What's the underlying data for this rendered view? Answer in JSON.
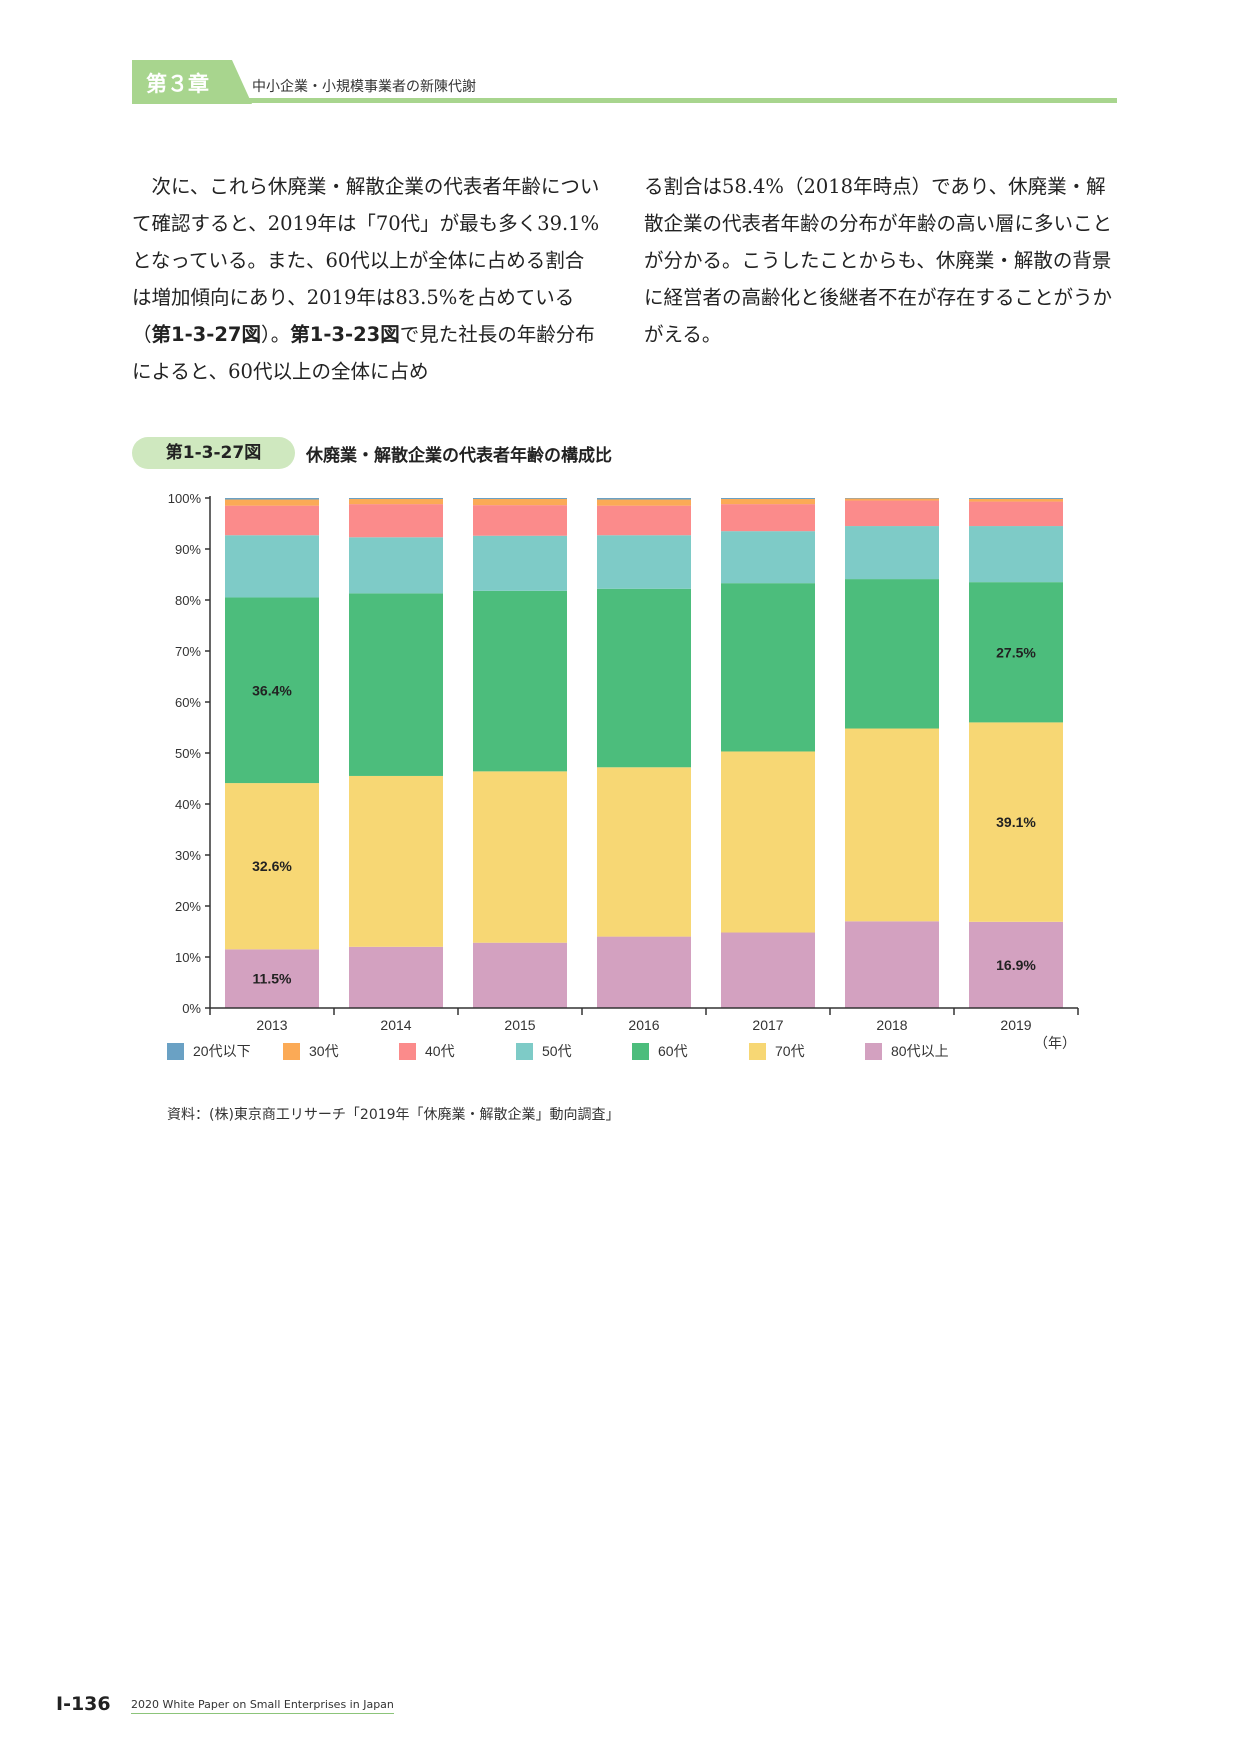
{
  "header": {
    "chapter_label": "第３章",
    "chapter_title": "中小企業・小規模事業者の新陳代謝"
  },
  "body": {
    "left_parts": [
      {
        "t": "次に、これら休廃業・解散企業の代表者年齢について確認すると、2019年は「70代」が最も多く39.1%となっている。また、60代以上が全体に占める割合は増加傾向にあり、2019年は83.5%を占めている（"
      },
      {
        "t": "第1-3-27図",
        "b": true
      },
      {
        "t": "）。"
      },
      {
        "t": "第1-3-23図",
        "b": true
      },
      {
        "t": "で見た社長の年齢分布によると、60代以上の全体に占め"
      }
    ],
    "right_text": "る割合は58.4%（2018年時点）であり、休廃業・解散企業の代表者年齢の分布が年齢の高い層に多いことが分かる。こうしたことからも、休廃業・解散の背景に経営者の高齢化と後継者不在が存在することがうかがえる。"
  },
  "figure": {
    "number": "第1-3-27図",
    "title": "休廃業・解散企業の代表者年齢の構成比",
    "source": "資料：(株)東京商工リサーチ「2019年「休廃業・解散企業」動向調査」"
  },
  "chart_data": {
    "type": "bar",
    "stacked": true,
    "categories": [
      "2013",
      "2014",
      "2015",
      "2016",
      "2017",
      "2018",
      "2019"
    ],
    "x_unit": "（年）",
    "ylim": [
      0,
      100
    ],
    "y_ticks": [
      "0%",
      "10%",
      "20%",
      "30%",
      "40%",
      "50%",
      "60%",
      "70%",
      "80%",
      "90%",
      "100%"
    ],
    "grid": false,
    "legend_position": "bottom",
    "series": [
      {
        "name": "80代以上",
        "color": "#d3a1c0",
        "values": [
          11.5,
          12.0,
          12.8,
          14.0,
          14.8,
          17.0,
          16.9
        ]
      },
      {
        "name": "70代",
        "color": "#f7d774",
        "values": [
          32.6,
          33.5,
          33.6,
          33.2,
          35.5,
          37.8,
          39.1
        ]
      },
      {
        "name": "60代",
        "color": "#4cbd7c",
        "values": [
          36.4,
          35.8,
          35.4,
          35.0,
          33.0,
          29.3,
          27.5
        ]
      },
      {
        "name": "50代",
        "color": "#7ecbc7",
        "values": [
          12.2,
          11.0,
          10.8,
          10.5,
          10.2,
          10.4,
          11.0
        ]
      },
      {
        "name": "40代",
        "color": "#fb8b8b",
        "values": [
          5.8,
          6.5,
          6.0,
          5.8,
          5.3,
          5.0,
          4.8
        ]
      },
      {
        "name": "30代",
        "color": "#fbaa56",
        "values": [
          1.2,
          1.0,
          1.2,
          1.2,
          1.0,
          0.4,
          0.5
        ]
      },
      {
        "name": "20代以下",
        "color": "#6aa1c4",
        "values": [
          0.3,
          0.2,
          0.2,
          0.3,
          0.2,
          0.1,
          0.2
        ]
      }
    ],
    "legend_order": [
      "20代以下",
      "30代",
      "40代",
      "50代",
      "60代",
      "70代",
      "80代以上"
    ],
    "data_labels": [
      {
        "category": "2013",
        "series": "80代以上",
        "text": "11.5%"
      },
      {
        "category": "2013",
        "series": "70代",
        "text": "32.6%"
      },
      {
        "category": "2013",
        "series": "60代",
        "text": "36.4%"
      },
      {
        "category": "2019",
        "series": "80代以上",
        "text": "16.9%"
      },
      {
        "category": "2019",
        "series": "70代",
        "text": "39.1%"
      },
      {
        "category": "2019",
        "series": "60代",
        "text": "27.5%"
      }
    ]
  },
  "footer": {
    "page_number": "Ⅰ-136",
    "publication": "2020 White Paper on Small Enterprises in Japan"
  }
}
